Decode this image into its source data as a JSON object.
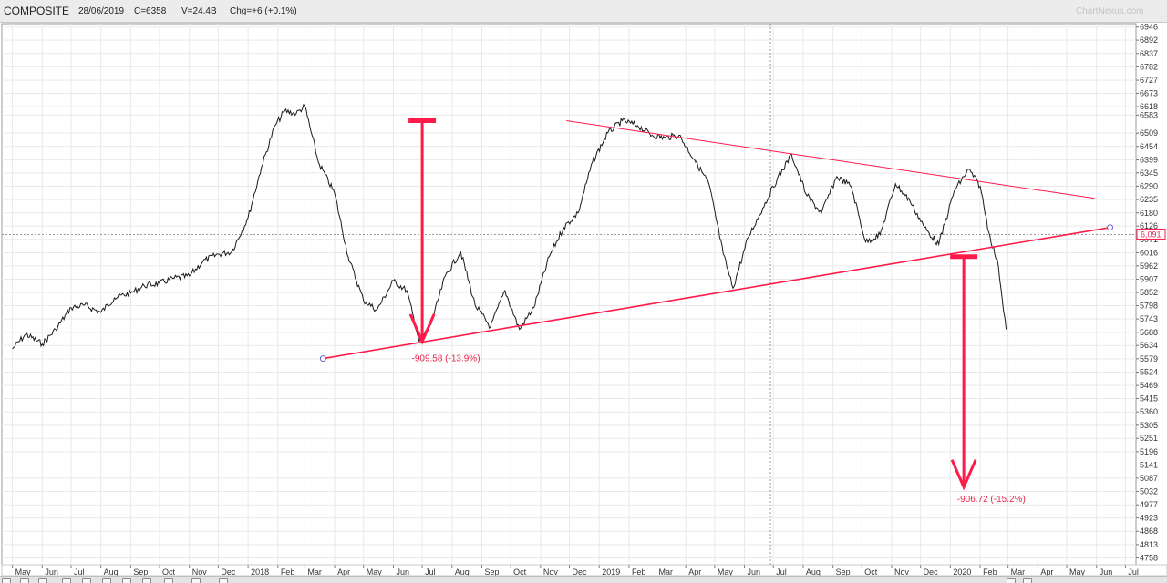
{
  "header": {
    "symbol": "COMPOSITE",
    "date": "28/06/2019",
    "close": "C=6358",
    "volume": "V=24.4B",
    "change": "Chg=+6 (+0.1%)",
    "watermark": "ChartNexus.com"
  },
  "colors": {
    "price_line": "#1a1a1a",
    "trend_line": "#ff1a4a",
    "annotation_text": "#e8264d",
    "grid": "#e9e9e9",
    "marker": "#7060d0"
  },
  "chart_data": {
    "type": "line",
    "title": "",
    "xlabel": "",
    "ylabel": "",
    "grid": true,
    "ylim": [
      4730,
      6960
    ],
    "y_ticks": [
      6946,
      6892,
      6837,
      6782,
      6727,
      6673,
      6618,
      6583,
      6509,
      6454,
      6399,
      6345,
      6290,
      6235,
      6180,
      6126,
      6071,
      6016,
      5962,
      5907,
      5852,
      5798,
      5743,
      5688,
      5634,
      5579,
      5524,
      5469,
      5415,
      5360,
      5305,
      5251,
      5196,
      5141,
      5087,
      5032,
      4977,
      4923,
      4868,
      4813,
      4758
    ],
    "last_price_label": "6,091",
    "x_ticks": [
      "May",
      "Jun",
      "Jul",
      "Aug",
      "Sep",
      "Oct",
      "Nov",
      "Dec",
      "2018",
      "Feb",
      "Mar",
      "Apr",
      "May",
      "Jun",
      "Jul",
      "Aug",
      "Sep",
      "Oct",
      "Nov",
      "Dec",
      "2019",
      "Feb",
      "Mar",
      "Apr",
      "May",
      "Jun",
      "Jul",
      "Aug",
      "Sep",
      "Oct",
      "Nov",
      "Dec",
      "2020",
      "Feb",
      "Mar",
      "Apr",
      "May",
      "Jun",
      "Jul"
    ],
    "series": [
      {
        "x": [
          "2017-05-01",
          "2017-05-15",
          "2017-06-01",
          "2017-06-15",
          "2017-07-01",
          "2017-07-15",
          "2017-08-01",
          "2017-08-15",
          "2017-09-01",
          "2017-09-15",
          "2017-10-01",
          "2017-10-15",
          "2017-11-01",
          "2017-11-15",
          "2017-12-01",
          "2017-12-15",
          "2018-01-01",
          "2018-01-15",
          "2018-01-29",
          "2018-02-08",
          "2018-02-20",
          "2018-03-01",
          "2018-03-15",
          "2018-04-01",
          "2018-04-15",
          "2018-05-01",
          "2018-05-15",
          "2018-06-01",
          "2018-06-15",
          "2018-06-28",
          "2018-07-10",
          "2018-07-25",
          "2018-08-10",
          "2018-08-25",
          "2018-09-10",
          "2018-09-25",
          "2018-10-10",
          "2018-10-25",
          "2018-11-10",
          "2018-11-25",
          "2018-12-10",
          "2018-12-25",
          "2019-01-10",
          "2019-01-25",
          "2019-02-10",
          "2019-02-25",
          "2019-03-10",
          "2019-03-25",
          "2019-04-10",
          "2019-04-25",
          "2019-05-10",
          "2019-05-20",
          "2019-06-05",
          "2019-06-20",
          "2019-07-05",
          "2019-07-20",
          "2019-08-05",
          "2019-08-20",
          "2019-09-05",
          "2019-09-20",
          "2019-10-05",
          "2019-10-20",
          "2019-11-05",
          "2019-11-20",
          "2019-12-05",
          "2019-12-20",
          "2020-01-05",
          "2020-01-20",
          "2020-02-01",
          "2020-02-10",
          "2020-02-20",
          "2020-02-28"
        ],
        "y": [
          5620,
          5680,
          5640,
          5700,
          5790,
          5800,
          5770,
          5830,
          5850,
          5880,
          5890,
          5910,
          5920,
          5980,
          6010,
          6020,
          6160,
          6370,
          6540,
          6600,
          6590,
          6620,
          6390,
          6260,
          6000,
          5820,
          5780,
          5900,
          5860,
          5650,
          5720,
          5920,
          6020,
          5800,
          5710,
          5860,
          5700,
          5790,
          6000,
          6120,
          6180,
          6390,
          6510,
          6560,
          6540,
          6500,
          6490,
          6500,
          6400,
          6300,
          6010,
          5870,
          6080,
          6200,
          6320,
          6420,
          6250,
          6180,
          6330,
          6290,
          6060,
          6090,
          6300,
          6230,
          6120,
          6050,
          6270,
          6360,
          6290,
          6100,
          5960,
          5700
        ]
      }
    ],
    "trend_lines": [
      {
        "name": "support",
        "from": [
          "2018-03-20",
          5580
        ],
        "to": [
          "2020-06-15",
          6120
        ]
      },
      {
        "name": "resistance",
        "from": [
          "2018-11-28",
          6560
        ],
        "to": [
          "2020-05-30",
          6240
        ]
      }
    ],
    "arrows": [
      {
        "from": [
          "2018-07-01",
          6560
        ],
        "to": [
          "2018-07-01",
          5650
        ]
      },
      {
        "from": [
          "2020-01-15",
          6000
        ],
        "to": [
          "2020-01-15",
          5050
        ]
      }
    ],
    "annotations": [
      {
        "text": "-909.58 (-13.9%)",
        "at": [
          "2018-06-20",
          5580
        ]
      },
      {
        "text": "-906.72 (-15.2%)",
        "at": [
          "2020-01-08",
          5000
        ]
      }
    ]
  }
}
